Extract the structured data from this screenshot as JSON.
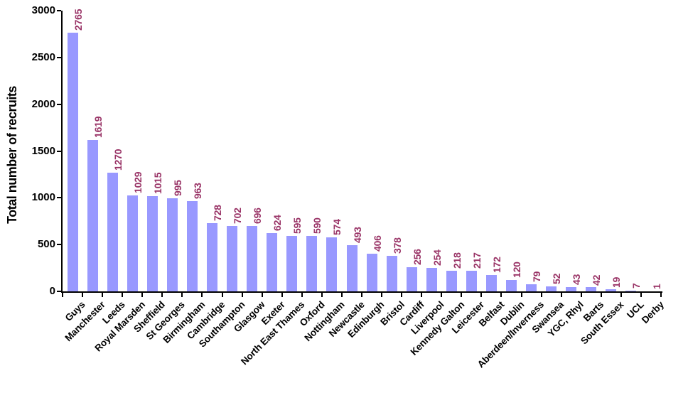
{
  "chart_data": {
    "type": "bar",
    "title": "",
    "xlabel": "",
    "ylabel": "Total number of recruits",
    "ylim": [
      0,
      3000
    ],
    "yticks": [
      0,
      500,
      1000,
      1500,
      2000,
      2500,
      3000
    ],
    "grid": false,
    "legend": false,
    "bar_color": "#9999FF",
    "value_label_color": "#993366",
    "axis_color": "#000000",
    "categories": [
      "Guys",
      "Manchester",
      "Leeds",
      "Royal Marsden",
      "Sheffield",
      "St Georges",
      "Birmingham",
      "Cambridge",
      "Southampton",
      "Glasgow",
      "Exeter",
      "North East Thames",
      "Oxford",
      "Nottingham",
      "Newcastle",
      "Edinburgh",
      "Bristol",
      "Cardiff",
      "Liverpool",
      "Kennedy Galton",
      "Leicester",
      "Belfast",
      "Dublin",
      "Aberdeen/Inverness",
      "Swansea",
      "YGC, Rhyl",
      "Barts",
      "South Essex",
      "UCL",
      "Derby"
    ],
    "values": [
      2765,
      1619,
      1270,
      1029,
      1015,
      995,
      963,
      728,
      702,
      696,
      624,
      595,
      590,
      574,
      493,
      406,
      378,
      256,
      254,
      218,
      217,
      172,
      120,
      79,
      52,
      43,
      42,
      19,
      7,
      1
    ]
  }
}
